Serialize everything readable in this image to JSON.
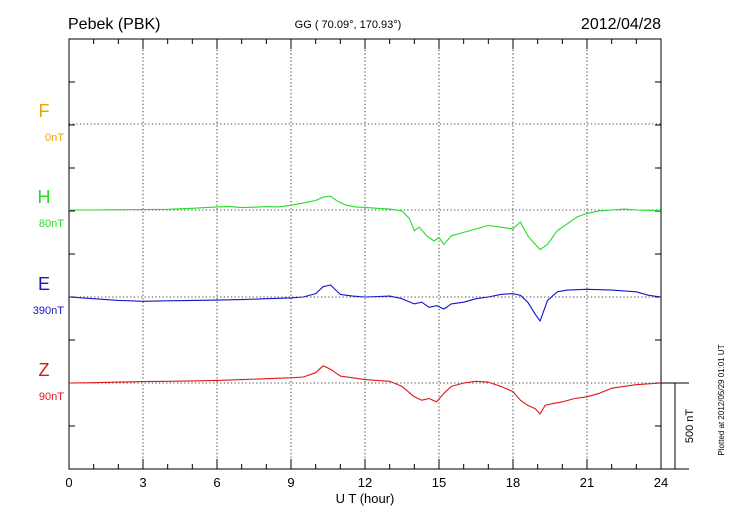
{
  "header": {
    "station": "Pebek (PBK)",
    "coords": "GG ( 70.09°, 170.93°)",
    "date": "2012/04/28"
  },
  "footer_note": "Plotted at 2012/05/29 01:01 UT",
  "scale_bar_label": "500 nT",
  "chart_data": {
    "type": "line",
    "xlabel": "U T (hour)",
    "xlim": [
      0,
      24
    ],
    "xticks": [
      0,
      3,
      6,
      9,
      12,
      15,
      18,
      21,
      24
    ],
    "xtick_labels": [
      "0",
      "3",
      "6",
      "9",
      "12",
      "15",
      "18",
      "21",
      "24"
    ],
    "grid": true,
    "y_scale_nT_per_bar": 500,
    "series": [
      {
        "name": "F",
        "offset_label": "0nT",
        "color": "#f5a000",
        "x": [],
        "y": []
      },
      {
        "name": "H",
        "offset_label": "80nT",
        "color": "#22dd22",
        "x": [
          0,
          1,
          2,
          3,
          4,
          5,
          6,
          6.5,
          7,
          7.5,
          8,
          8.5,
          9,
          9.5,
          10,
          10.3,
          10.6,
          10.9,
          11.2,
          11.6,
          12,
          12.5,
          13,
          13.5,
          13.8,
          14,
          14.2,
          14.5,
          14.8,
          15,
          15.2,
          15.5,
          16,
          16.5,
          17,
          17.5,
          18,
          18.3,
          18.6,
          18.9,
          19.1,
          19.4,
          19.8,
          20.2,
          20.6,
          21,
          21.5,
          22,
          22.5,
          23,
          23.5,
          24
        ],
        "y": [
          0,
          0,
          2,
          3,
          4,
          10,
          18,
          20,
          14,
          16,
          19,
          18,
          28,
          40,
          55,
          75,
          80,
          50,
          30,
          18,
          15,
          10,
          5,
          -5,
          -50,
          -120,
          -100,
          -150,
          -180,
          -160,
          -200,
          -150,
          -130,
          -110,
          -90,
          -100,
          -110,
          -70,
          -150,
          -200,
          -230,
          -200,
          -120,
          -80,
          -40,
          -20,
          -5,
          0,
          5,
          0,
          -2,
          -3
        ]
      },
      {
        "name": "E",
        "offset_label": "390nT",
        "color": "#1515c8",
        "x": [
          0,
          1,
          2,
          3,
          4,
          5,
          6,
          7,
          8,
          9,
          9.5,
          10,
          10.3,
          10.6,
          11,
          11.5,
          12,
          13,
          13.5,
          14,
          14.3,
          14.6,
          14.9,
          15.2,
          15.5,
          16,
          16.5,
          17,
          17.5,
          18,
          18.3,
          18.6,
          18.9,
          19.1,
          19.4,
          19.8,
          20.2,
          21,
          22,
          23,
          23.5,
          24
        ],
        "y": [
          0,
          -10,
          -20,
          -25,
          -22,
          -20,
          -18,
          -15,
          -10,
          -5,
          0,
          20,
          60,
          70,
          15,
          5,
          0,
          5,
          -10,
          -40,
          -30,
          -60,
          -50,
          -70,
          -40,
          -30,
          -10,
          0,
          15,
          20,
          10,
          -30,
          -100,
          -140,
          -20,
          30,
          40,
          45,
          40,
          30,
          10,
          0
        ]
      },
      {
        "name": "Z",
        "offset_label": "90nT",
        "color": "#e01515",
        "x": [
          0,
          1,
          2,
          3,
          4,
          5,
          6,
          7,
          8,
          9,
          9.5,
          10,
          10.3,
          10.6,
          11,
          11.5,
          12,
          13,
          13.5,
          14,
          14.3,
          14.6,
          14.9,
          15.2,
          15.5,
          16,
          16.5,
          17,
          17.5,
          18,
          18.3,
          18.6,
          18.9,
          19.1,
          19.3,
          19.6,
          20,
          20.5,
          21,
          21.5,
          22,
          23,
          24
        ],
        "y": [
          0,
          2,
          5,
          8,
          10,
          12,
          15,
          20,
          25,
          30,
          35,
          60,
          100,
          80,
          40,
          30,
          20,
          10,
          -20,
          -80,
          -100,
          -90,
          -110,
          -60,
          -20,
          0,
          10,
          5,
          -20,
          -50,
          -100,
          -130,
          -150,
          -180,
          -130,
          -120,
          -110,
          -90,
          -80,
          -60,
          -30,
          -10,
          0
        ]
      }
    ]
  }
}
